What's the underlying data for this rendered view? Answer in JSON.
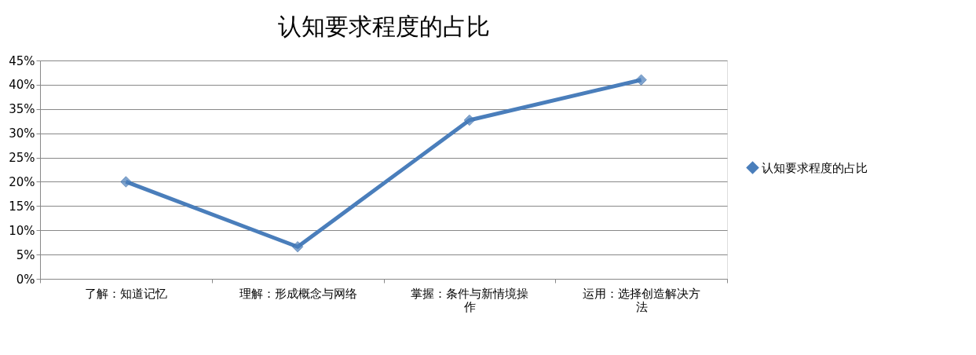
{
  "chart_data": {
    "type": "line",
    "title": "认知要求程度的占比",
    "categories": [
      "了解：知道记忆",
      "理解：形成概念与网络",
      "掌握：条件与新情境操作",
      "运用：选择创造解决方法"
    ],
    "series": [
      {
        "name": "认知要求程度的占比",
        "color": "#4a7ebb",
        "values": [
          20,
          6.6,
          32.7,
          41
        ]
      }
    ],
    "ylim": [
      0,
      45
    ],
    "yticks": [
      {
        "value": 0,
        "label": "0%"
      },
      {
        "value": 5,
        "label": "5%"
      },
      {
        "value": 10,
        "label": "10%"
      },
      {
        "value": 15,
        "label": "15%"
      },
      {
        "value": 20,
        "label": "20%"
      },
      {
        "value": 25,
        "label": "25%"
      },
      {
        "value": 30,
        "label": "30%"
      },
      {
        "value": 35,
        "label": "35%"
      },
      {
        "value": 40,
        "label": "40%"
      },
      {
        "value": 45,
        "label": "45%"
      }
    ],
    "grid": "y",
    "legend": "right",
    "marker": "diamond",
    "line_style": "solid"
  }
}
